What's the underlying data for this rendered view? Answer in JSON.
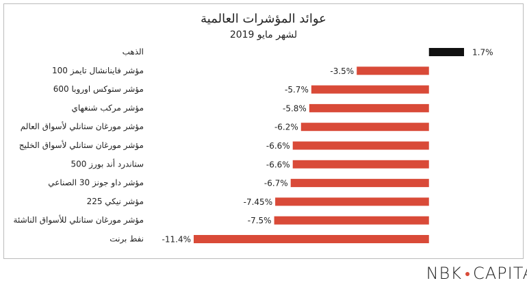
{
  "chart_data": {
    "type": "bar",
    "orientation": "horizontal",
    "title": "عوائد المؤشرات العالمية",
    "subtitle": "لشهر مايو 2019",
    "categories": [
      "الذهب",
      "مؤشر فاينانشال تايمز 100",
      "مؤشر ستوكس اوروبا 600",
      "مؤشر مركب شنغهاي",
      "مؤشر مورغان ستانلي لأسواق العالم",
      "مؤشر مورغان ستانلي لأسواق الخليج",
      "ستاندرد أند بورز 500",
      "مؤشر داو جونز 30 الصناعي",
      "مؤشر نيكي 225",
      "مؤشر مورغان ستانلي للأسواق الناشئة",
      "نفط برنت"
    ],
    "values": [
      1.7,
      -3.5,
      -5.7,
      -5.8,
      -6.2,
      -6.6,
      -6.6,
      -6.7,
      -7.45,
      -7.5,
      -11.4
    ],
    "value_labels": [
      "1.7%",
      "-3.5%",
      "-5.7%",
      "-5.8%",
      "-6.2%",
      "-6.6%",
      "-6.6%",
      "-6.7%",
      "-7.45%",
      "-7.5%",
      "-11.4%"
    ],
    "colors": [
      "#111111",
      "#d94a38",
      "#d94a38",
      "#d94a38",
      "#d94a38",
      "#d94a38",
      "#d94a38",
      "#d94a38",
      "#d94a38",
      "#d94a38",
      "#d94a38"
    ]
  },
  "logo": [
    "NBK",
    "CAPITAL"
  ]
}
